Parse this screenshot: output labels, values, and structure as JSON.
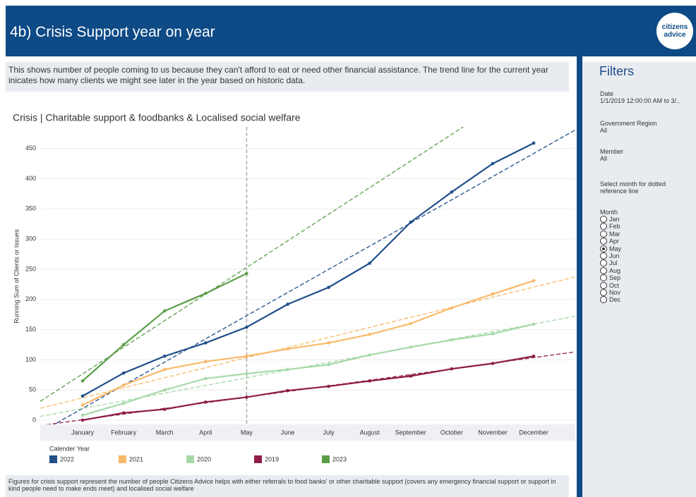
{
  "header": {
    "title": "4b) Crisis Support  year on year",
    "logo": [
      "citizens",
      "advice"
    ]
  },
  "description": "This shows number of people coming to us because they can't afford to eat or need other financial assistance. The trend line for the current year inicates how many clients we might see later in the year based on historic data.",
  "chart_data": {
    "type": "line",
    "title": "Crisis | Charitable support & foodbanks & Localised social welfare",
    "y_label": "Running Sum of Clients or Issues",
    "categories": [
      "January",
      "February",
      "March",
      "April",
      "May",
      "June",
      "July",
      "August",
      "September",
      "October",
      "November",
      "December"
    ],
    "series": [
      {
        "name": "2022",
        "color": "#1f4e89",
        "values": [
          40,
          78,
          106,
          128,
          154,
          192,
          220,
          260,
          328,
          378,
          425,
          459
        ]
      },
      {
        "name": "2021",
        "color": "#f9b96a",
        "values": [
          25,
          58,
          84,
          97,
          106,
          118,
          128,
          142,
          160,
          186,
          209,
          231
        ]
      },
      {
        "name": "2020",
        "color": "#a6d9a8",
        "values": [
          8,
          28,
          50,
          69,
          77,
          84,
          92,
          108,
          121,
          133,
          143,
          159
        ]
      },
      {
        "name": "2019",
        "color": "#8e1d4a",
        "values": [
          0,
          12,
          18,
          30,
          38,
          49,
          56,
          65,
          73,
          85,
          94,
          106
        ]
      },
      {
        "name": "2023",
        "color": "#5b9e4a",
        "values": [
          65,
          125,
          181,
          210,
          243,
          null,
          null,
          null,
          null,
          null,
          null,
          null
        ]
      }
    ],
    "legend_title": "Calender Year",
    "ylim": [
      -7,
      480
    ],
    "yticks": [
      0,
      50,
      100,
      150,
      200,
      250,
      300,
      350,
      400,
      450
    ],
    "grid": true,
    "trend_lines": true
  },
  "filters": {
    "title": "Filters",
    "items": [
      {
        "label": "Date",
        "value": "1/1/2019 12:00:00 AM to 3/.."
      },
      {
        "label": "Government Region",
        "value": "All"
      },
      {
        "label": "Member",
        "value": "All"
      }
    ],
    "prompt": "Select month for dotted reference line",
    "month_label": "Month",
    "months": [
      "Jan",
      "Feb",
      "Mar",
      "Apr",
      "May",
      "Jun",
      "Jul",
      "Aug",
      "Sep",
      "Oct",
      "Nov",
      "Dec"
    ],
    "selected_index": 4
  },
  "footer": "Figures for crisis support represent the number of people Citizens Advice helps with either referrals to food banks' or other charitable support (covers any emergency financial support or support in kind people need to make ends meet) and localised social welfare"
}
